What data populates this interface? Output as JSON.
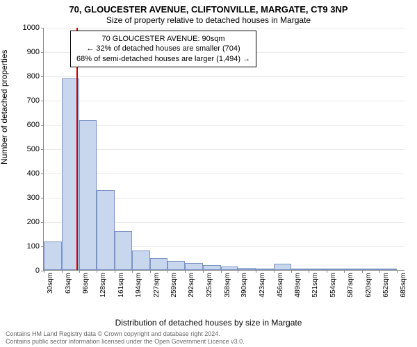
{
  "header": {
    "title": "70, GLOUCESTER AVENUE, CLIFTONVILLE, MARGATE, CT9 3NP",
    "subtitle": "Size of property relative to detached houses in Margate"
  },
  "chart": {
    "type": "histogram",
    "ylabel": "Number of detached properties",
    "xlabel": "Distribution of detached houses by size in Margate",
    "ylim": [
      0,
      1000
    ],
    "ytick_step": 100,
    "xticks": [
      "30sqm",
      "63sqm",
      "96sqm",
      "128sqm",
      "161sqm",
      "194sqm",
      "227sqm",
      "259sqm",
      "292sqm",
      "325sqm",
      "358sqm",
      "390sqm",
      "423sqm",
      "456sqm",
      "489sqm",
      "521sqm",
      "554sqm",
      "587sqm",
      "620sqm",
      "652sqm",
      "685sqm"
    ],
    "xmin": 30,
    "xmax": 700,
    "bars": [
      {
        "x0": 30,
        "x1": 63,
        "y": 118
      },
      {
        "x0": 63,
        "x1": 96,
        "y": 790
      },
      {
        "x0": 96,
        "x1": 128,
        "y": 618
      },
      {
        "x0": 128,
        "x1": 161,
        "y": 328
      },
      {
        "x0": 161,
        "x1": 194,
        "y": 160
      },
      {
        "x0": 194,
        "x1": 227,
        "y": 80
      },
      {
        "x0": 227,
        "x1": 259,
        "y": 50
      },
      {
        "x0": 259,
        "x1": 292,
        "y": 38
      },
      {
        "x0": 292,
        "x1": 325,
        "y": 28
      },
      {
        "x0": 325,
        "x1": 358,
        "y": 20
      },
      {
        "x0": 358,
        "x1": 390,
        "y": 14
      },
      {
        "x0": 390,
        "x1": 423,
        "y": 8
      },
      {
        "x0": 423,
        "x1": 456,
        "y": 5
      },
      {
        "x0": 456,
        "x1": 489,
        "y": 25
      },
      {
        "x0": 489,
        "x1": 521,
        "y": 3
      },
      {
        "x0": 521,
        "x1": 554,
        "y": 2
      },
      {
        "x0": 554,
        "x1": 587,
        "y": 2
      },
      {
        "x0": 587,
        "x1": 620,
        "y": 2
      },
      {
        "x0": 620,
        "x1": 652,
        "y": 2
      },
      {
        "x0": 652,
        "x1": 685,
        "y": 2
      }
    ],
    "reference_x": 90,
    "bar_fill": "#c9d7ee",
    "bar_stroke": "#7a94c5",
    "ref_color": "#cc0000",
    "grid_color": "#e8e8e8",
    "background_color": "#ffffff",
    "title_fontsize": 13,
    "subtitle_fontsize": 12,
    "label_fontsize": 12,
    "tick_fontsize": 11
  },
  "annotation": {
    "line1": "70 GLOUCESTER AVENUE: 90sqm",
    "line2": "← 32% of detached houses are smaller (704)",
    "line3": "68% of semi-detached houses are larger (1,494) →"
  },
  "footer": {
    "line1": "Contains HM Land Registry data © Crown copyright and database right 2024.",
    "line2": "Contains public sector information licensed under the Open Government Licence v3.0."
  }
}
